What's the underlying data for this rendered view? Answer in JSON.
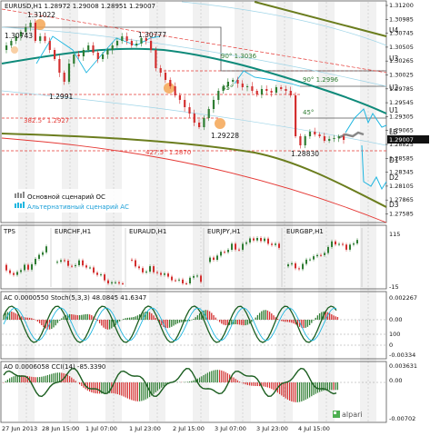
{
  "header": {
    "main": "EURUSD,H1  1.28972 1.29008 1.28951 1.29007",
    "p2": "TPS",
    "p2_syms": [
      "EURCHF,H1",
      "EURAUD,H1",
      "EURJPY,H1",
      "EURGBP,H1"
    ],
    "p3": "AC 0.0000550  Stoch(5,3,3) 48.0845 41.6347",
    "p4": "AO 0.0006058  CCI(14) -85.3390"
  },
  "price_axis": {
    "labels": [
      "1.31200",
      "1.30985",
      "1.30745",
      "1.30505",
      "1.30265",
      "1.30025",
      "1.29785",
      "1.29545",
      "1.29305",
      "1.29065",
      "1.28825",
      "1.28585",
      "1.28345",
      "1.28105",
      "1.27865",
      "1.27585"
    ],
    "current": "1.29007"
  },
  "levels": [
    "U4",
    "U3",
    "U2",
    "U1",
    "LB",
    "D1",
    "D2",
    "D3"
  ],
  "price_labels": [
    "1.31022",
    "1.30743",
    "1.30777",
    "1.2991",
    "1.29228",
    "1.28830"
  ],
  "annotations": {
    "a1": "90° 1.3036",
    "a2": "90° 1.2996",
    "a3": "45°",
    "a4": "45°",
    "a5": "382.5° 1.2927",
    "a6": "427.5° 1.2870"
  },
  "legend": {
    "main": "Основной сценарий ОС",
    "alt": "Альтернативный сценарий АС"
  },
  "p2_axis": {
    "top": "115",
    "bottom": "-15"
  },
  "p3_axis": {
    "top": "0.002267",
    "mid": "0.00",
    "bottom": "-0.00334"
  },
  "p3_axis2": {
    "top": "100",
    "bottom": "0"
  },
  "p4_axis": {
    "top": "0.003631",
    "mid": "0.00",
    "bottom": "-0.00702"
  },
  "time_axis": [
    "27 Jun 2013",
    "28 Jun 15:00",
    "1 Jul 07:00",
    "1 Jul 23:00",
    "2 Jul 15:00",
    "3 Jul 07:00",
    "3 Jul 23:00",
    "4 Jul 15:00"
  ],
  "brand": "alpari",
  "colors": {
    "bull": "#2e7d32",
    "bear": "#d32f2f",
    "cyan": "#1fb6e0",
    "olive": "#6b7d1e",
    "teal": "#0f8a7a",
    "red": "#e53935"
  }
}
